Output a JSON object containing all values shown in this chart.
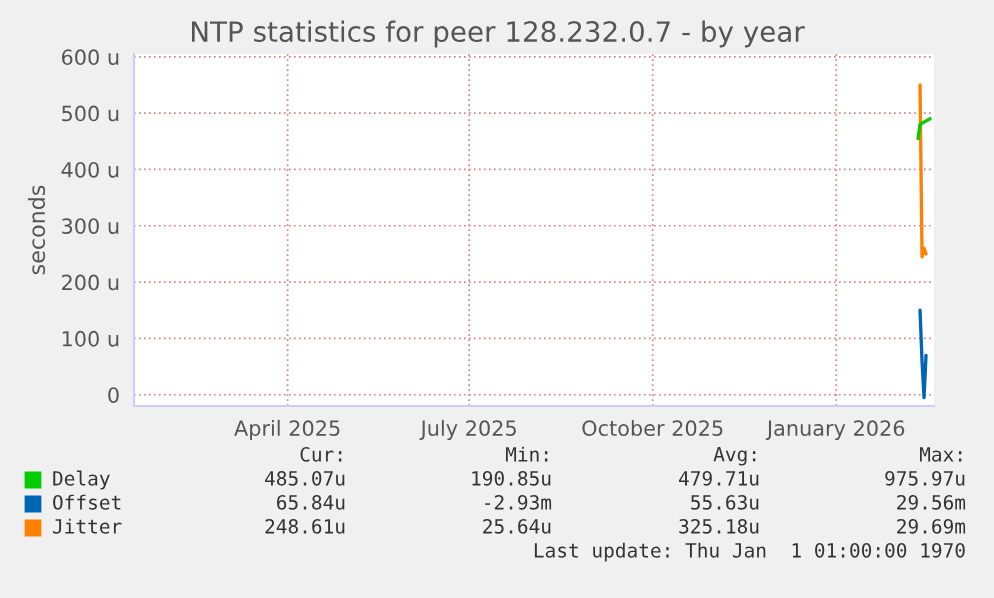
{
  "chart_data": {
    "type": "line",
    "title": "NTP statistics for peer 128.232.0.7 - by year",
    "ylabel": "seconds",
    "series": [
      {
        "name": "Delay",
        "color": "#00cc00",
        "x": [
          "2026-02-11",
          "2026-02-12",
          "2026-02-17"
        ],
        "values": [
          455,
          480,
          490
        ]
      },
      {
        "name": "Offset",
        "color": "#0066b3",
        "x": [
          "2026-02-12",
          "2026-02-13",
          "2026-02-14",
          "2026-02-15"
        ],
        "values": [
          150,
          60,
          -5,
          70
        ]
      },
      {
        "name": "Jitter",
        "color": "#ff8000",
        "x": [
          "2026-02-12",
          "2026-02-13",
          "2026-02-14",
          "2026-02-15"
        ],
        "values": [
          550,
          245,
          260,
          250
        ]
      }
    ],
    "xlim": [
      "2025-01-14",
      "2026-02-19"
    ],
    "xticks": [
      {
        "value": "2025-04-01",
        "label": "April 2025"
      },
      {
        "value": "2025-07-01",
        "label": "July 2025"
      },
      {
        "value": "2025-10-01",
        "label": "October 2025"
      },
      {
        "value": "2026-01-01",
        "label": "January 2026"
      }
    ],
    "ylim": [
      -20,
      605
    ],
    "yticks": [
      0,
      {
        "value": 100,
        "label": "100 u"
      },
      {
        "value": 200,
        "label": "200 u"
      },
      {
        "value": 300,
        "label": "300 u"
      },
      {
        "value": 400,
        "label": "400 u"
      },
      {
        "value": 500,
        "label": "500 u"
      },
      {
        "value": 600,
        "label": "600 u"
      }
    ],
    "grid": true,
    "legend": "bottom",
    "annotations": [
      "Cur:",
      "Min:",
      "Avg:",
      "Max:",
      "485.07u",
      "190.85u",
      "479.71u",
      "975.97u",
      "65.84u",
      "-2.93m",
      "55.63u",
      "29.56m",
      "248.61u",
      "25.64u",
      "325.18u",
      "29.69m",
      "Last update: Thu Jan  1 01:00:00 1970"
    ]
  }
}
